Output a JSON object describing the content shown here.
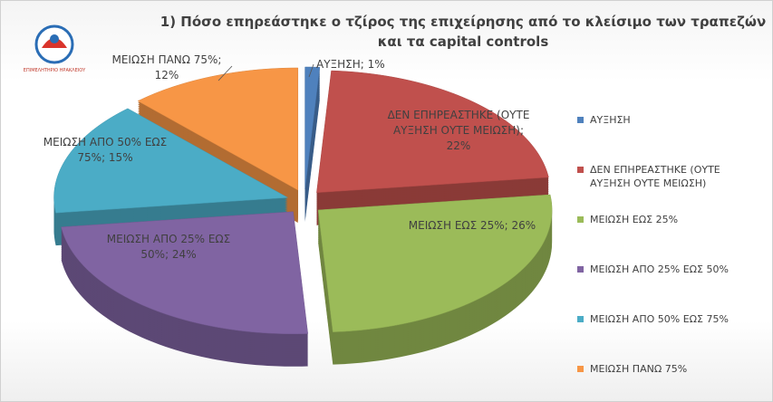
{
  "logo": {
    "text": "ΕΠΙΜΕΛΗΤΗΡΙΟ ΗΡΑΚΛΕΙΟΥ"
  },
  "chart_data": {
    "type": "pie",
    "title": "1) Πόσο επηρεάστηκε ο τζίρος της επιχείρησης από το κλείσιμο των τραπεζών και τα capital controls",
    "categories": [
      "ΑΥΞΗΣΗ",
      "ΔΕΝ ΕΠΗΡΕΑΣΤΗΚΕ (ΟΥΤΕ ΑΥΞΗΣΗ ΟΥΤΕ ΜΕΙΩΣΗ)",
      "ΜΕΙΩΣΗ ΕΩΣ 25%",
      "ΜΕΙΩΣΗ ΑΠΟ 25% ΕΩΣ 50%",
      "ΜΕΙΩΣΗ ΑΠΟ 50% ΕΩΣ 75%",
      "ΜΕΙΩΣΗ ΠΑΝΩ 75%"
    ],
    "values": [
      1,
      22,
      26,
      24,
      15,
      12
    ],
    "value_labels": [
      "ΑΥΞΗΣΗ; 1%",
      "ΔΕΝ ΕΠΗΡΕΑΣΤΗΚΕ (ΟΥΤΕ ΑΥΞΗΣΗ ΟΥΤΕ ΜΕΙΩΣΗ); 22%",
      "ΜΕΙΩΣΗ ΕΩΣ 25%; 26%",
      "ΜΕΙΩΣΗ ΑΠΟ 25% ΕΩΣ 50%; 24%",
      "ΜΕΙΩΣΗ ΑΠΟ 50% ΕΩΣ 75%; 15%",
      "ΜΕΙΩΣΗ ΠΑΝΩ 75%; 12%"
    ],
    "colors": [
      "#4f81bd",
      "#c0504d",
      "#9bbb59",
      "#8064a2",
      "#4bacc6",
      "#f79646"
    ],
    "legend": "right"
  }
}
